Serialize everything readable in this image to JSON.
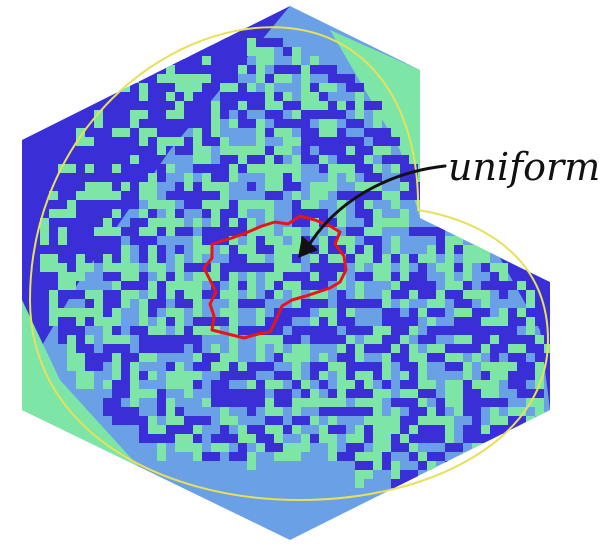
{
  "figure": {
    "annotation": {
      "label": "uniform"
    },
    "colors": {
      "background": "#ffffff",
      "face_top": "#6aa0e6",
      "face_left": "#3a2fd6",
      "face_right": "#7de6a6",
      "arctic_circle": "#e7e05a",
      "highlight_region": "#e8141a",
      "annotation": "#111111"
    }
  }
}
